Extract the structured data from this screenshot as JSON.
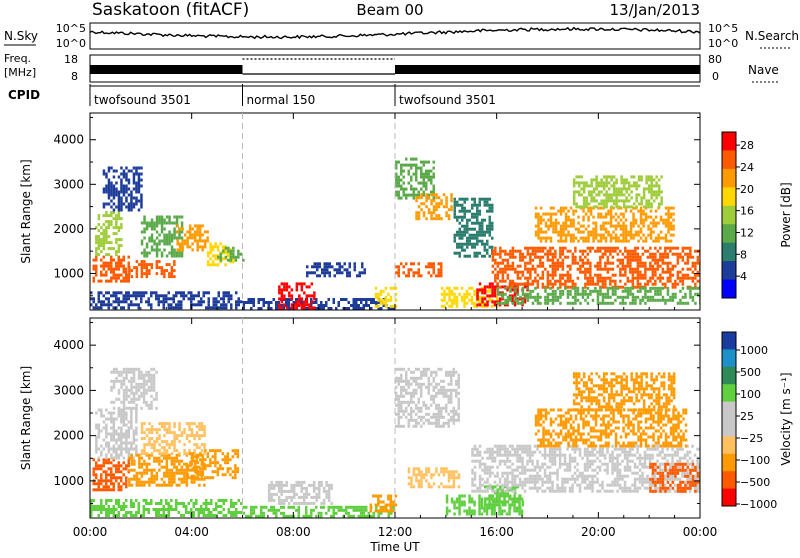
{
  "header": {
    "title": "Saskatoon (fitACF)",
    "beam": "Beam 00",
    "date": "13/Jan/2013"
  },
  "noise_panel": {
    "left_label": "N.Sky",
    "right_label": "N.Search",
    "left_ticks": [
      "10^5",
      "10^0"
    ],
    "right_ticks": [
      "10^5",
      "10^0"
    ]
  },
  "freq_panel": {
    "left_label_1": "Freq.",
    "left_label_2": "[MHz]",
    "right_label": "Nave",
    "left_ticks": [
      "18",
      "8"
    ],
    "right_ticks": [
      "80",
      "0"
    ]
  },
  "cpid": {
    "label": "CPID",
    "segments": [
      {
        "name": "twofsound 3501",
        "start_hour": 0,
        "end_hour": 6
      },
      {
        "name": "normal 150",
        "start_hour": 6,
        "end_hour": 12
      },
      {
        "name": "twofsound 3501",
        "start_hour": 12,
        "end_hour": 24
      }
    ]
  },
  "colors": {
    "power_scale": [
      "#0000ff",
      "#1e3c9a",
      "#2b7d6e",
      "#5aaa4a",
      "#9fcc3a",
      "#ffd700",
      "#ff9a00",
      "#ff5a00",
      "#ff0000"
    ],
    "velocity_scale": [
      "#ff0000",
      "#ff5a00",
      "#ff9a00",
      "#ffc060",
      "#c8c8c8",
      "#c8c8c8",
      "#60d040",
      "#2e8b57",
      "#1e90c8",
      "#1a3ca0"
    ]
  },
  "chart_data": [
    {
      "type": "heatmap",
      "parameter": "power",
      "xlabel": "",
      "ylabel": "Slant Range [km]",
      "xlim": [
        0,
        24
      ],
      "ylim": [
        180,
        4600
      ],
      "yticks": [
        "1000",
        "2000",
        "3000",
        "4000"
      ],
      "colorbar": {
        "label": "Power [dB]",
        "ticks": [
          "4",
          "8",
          "12",
          "16",
          "20",
          "24",
          "28"
        ],
        "range": [
          0,
          30
        ]
      },
      "regions": [
        {
          "t0": 0.1,
          "t1": 1.5,
          "r0": 800,
          "r1": 1400,
          "level": 25
        },
        {
          "t0": 0.2,
          "t1": 1.2,
          "r0": 1400,
          "r1": 2400,
          "level": 14
        },
        {
          "t0": 0.5,
          "t1": 2.0,
          "r0": 2400,
          "r1": 3400,
          "level": 6
        },
        {
          "t0": 1.5,
          "t1": 3.3,
          "r0": 900,
          "r1": 1300,
          "level": 26
        },
        {
          "t0": 2.0,
          "t1": 3.6,
          "r0": 1400,
          "r1": 2300,
          "level": 12
        },
        {
          "t0": 3.4,
          "t1": 4.6,
          "r0": 1500,
          "r1": 2100,
          "level": 20
        },
        {
          "t0": 4.6,
          "t1": 5.6,
          "r0": 1200,
          "r1": 1700,
          "level": 18
        },
        {
          "t0": 5.0,
          "t1": 6.0,
          "r0": 1300,
          "r1": 1600,
          "level": 10
        },
        {
          "t0": 0.0,
          "t1": 6.0,
          "r0": 250,
          "r1": 600,
          "level": 6
        },
        {
          "t0": 6.0,
          "t1": 12.0,
          "r0": 200,
          "r1": 450,
          "level": 5
        },
        {
          "t0": 7.4,
          "t1": 8.8,
          "r0": 250,
          "r1": 800,
          "level": 27
        },
        {
          "t0": 8.5,
          "t1": 10.8,
          "r0": 950,
          "r1": 1250,
          "level": 6
        },
        {
          "t0": 11.2,
          "t1": 12.0,
          "r0": 250,
          "r1": 700,
          "level": 18
        },
        {
          "t0": 12.0,
          "t1": 13.5,
          "r0": 2700,
          "r1": 3600,
          "level": 10
        },
        {
          "t0": 12.8,
          "t1": 14.2,
          "r0": 2200,
          "r1": 2800,
          "level": 22
        },
        {
          "t0": 12.0,
          "t1": 13.8,
          "r0": 950,
          "r1": 1250,
          "level": 26
        },
        {
          "t0": 13.8,
          "t1": 16.0,
          "r0": 250,
          "r1": 700,
          "level": 18
        },
        {
          "t0": 14.3,
          "t1": 15.8,
          "r0": 1400,
          "r1": 2700,
          "level": 8
        },
        {
          "t0": 15.2,
          "t1": 17.2,
          "r0": 300,
          "r1": 800,
          "level": 28
        },
        {
          "t0": 15.8,
          "t1": 24.0,
          "r0": 700,
          "r1": 1600,
          "level": 24
        },
        {
          "t0": 17.5,
          "t1": 23.0,
          "r0": 1700,
          "r1": 2500,
          "level": 22
        },
        {
          "t0": 19.0,
          "t1": 22.5,
          "r0": 2500,
          "r1": 3200,
          "level": 16
        },
        {
          "t0": 16.0,
          "t1": 24.0,
          "r0": 300,
          "r1": 700,
          "level": 10
        }
      ]
    },
    {
      "type": "heatmap",
      "parameter": "velocity",
      "xlabel": "Time UT",
      "ylabel": "Slant Range [km]",
      "xlim": [
        0,
        24
      ],
      "ylim": [
        180,
        4600
      ],
      "xticks": [
        "00:00",
        "04:00",
        "08:00",
        "12:00",
        "16:00",
        "20:00",
        "00:00"
      ],
      "yticks": [
        "1000",
        "2000",
        "3000",
        "4000"
      ],
      "colorbar": {
        "label": "Velocity [m s⁻¹]",
        "ticks": [
          "1000",
          "500",
          "100",
          "25",
          "−25",
          "−100",
          "−500",
          "−1000"
        ]
      },
      "regions": [
        {
          "t0": 0.1,
          "t1": 1.5,
          "r0": 800,
          "r1": 1500,
          "level": 1
        },
        {
          "t0": 0.2,
          "t1": 1.8,
          "r0": 1500,
          "r1": 2600,
          "level": 4
        },
        {
          "t0": 0.8,
          "t1": 2.6,
          "r0": 2600,
          "r1": 3500,
          "level": 4
        },
        {
          "t0": 1.5,
          "t1": 4.5,
          "r0": 900,
          "r1": 1600,
          "level": 2
        },
        {
          "t0": 2.0,
          "t1": 4.5,
          "r0": 1600,
          "r1": 2300,
          "level": 3
        },
        {
          "t0": 3.8,
          "t1": 5.8,
          "r0": 1100,
          "r1": 1700,
          "level": 2
        },
        {
          "t0": 0.0,
          "t1": 6.0,
          "r0": 250,
          "r1": 600,
          "level": 6
        },
        {
          "t0": 6.0,
          "t1": 12.0,
          "r0": 200,
          "r1": 450,
          "level": 6
        },
        {
          "t0": 7.0,
          "t1": 9.5,
          "r0": 500,
          "r1": 1000,
          "level": 4
        },
        {
          "t0": 11.0,
          "t1": 12.0,
          "r0": 350,
          "r1": 700,
          "level": 2
        },
        {
          "t0": 12.0,
          "t1": 14.5,
          "r0": 2200,
          "r1": 3500,
          "level": 4
        },
        {
          "t0": 12.5,
          "t1": 14.5,
          "r0": 900,
          "r1": 1300,
          "level": 3
        },
        {
          "t0": 14.0,
          "t1": 17.0,
          "r0": 250,
          "r1": 700,
          "level": 6
        },
        {
          "t0": 15.5,
          "t1": 17.0,
          "r0": 400,
          "r1": 900,
          "level": 6
        },
        {
          "t0": 15.0,
          "t1": 24.0,
          "r0": 800,
          "r1": 1800,
          "level": 4
        },
        {
          "t0": 17.5,
          "t1": 23.5,
          "r0": 1800,
          "r1": 2600,
          "level": 2
        },
        {
          "t0": 19.0,
          "t1": 23.0,
          "r0": 2600,
          "r1": 3400,
          "level": 2
        },
        {
          "t0": 22.0,
          "t1": 24.0,
          "r0": 800,
          "r1": 1400,
          "level": 1
        }
      ]
    }
  ]
}
